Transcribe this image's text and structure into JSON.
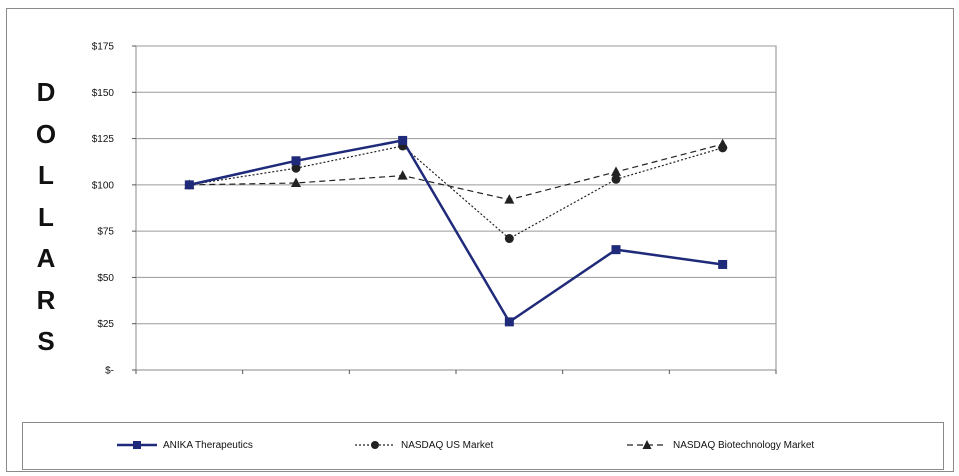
{
  "chart_data": {
    "type": "line",
    "title": "",
    "xlabel": "",
    "ylabel": "DOLLARS",
    "ylim": [
      0,
      175
    ],
    "y_ticks": [
      0,
      25,
      50,
      75,
      100,
      125,
      150,
      175
    ],
    "y_tick_labels": [
      "$-",
      "$25",
      "$50",
      "$75",
      "$100",
      "$125",
      "$150",
      "$175"
    ],
    "x": [
      1,
      2,
      3,
      4,
      5,
      6
    ],
    "grid": true,
    "legend_position": "bottom",
    "series": [
      {
        "name": "ANIKA Therapeutics",
        "values": [
          100,
          113,
          124,
          26,
          65,
          57
        ],
        "color": "#1f2a7a",
        "marker": "square",
        "dash": "solid"
      },
      {
        "name": "NASDAQ US Market",
        "values": [
          100,
          109,
          121,
          71,
          103,
          120
        ],
        "color": "#222222",
        "marker": "circle",
        "dash": "dotted"
      },
      {
        "name": "NASDAQ Biotechnology Market",
        "values": [
          100,
          101,
          105,
          92,
          107,
          122
        ],
        "color": "#222222",
        "marker": "triangle",
        "dash": "dashed"
      }
    ]
  }
}
